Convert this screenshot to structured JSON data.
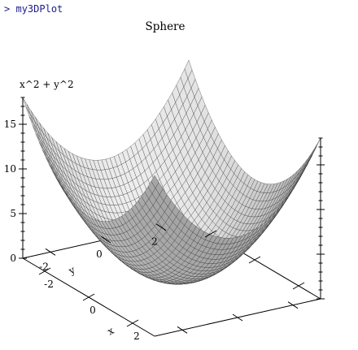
{
  "console": {
    "prompt_symbol": ">",
    "command": "my3DPlot"
  },
  "chart_data": {
    "type": "surface",
    "title": "Sphere",
    "function": "x^2 + y^2",
    "xlabel": "x",
    "ylabel": "y",
    "zlabel": "x^2 + y^2",
    "x_range": [
      -3,
      3
    ],
    "y_range": [
      -3,
      3
    ],
    "z_range": [
      0,
      18
    ],
    "x_ticks": [
      {
        "value": -2,
        "label": "-2"
      },
      {
        "value": 0,
        "label": "0"
      },
      {
        "value": 2,
        "label": "2"
      }
    ],
    "y_ticks": [
      {
        "value": -2,
        "label": "-2"
      },
      {
        "value": 0,
        "label": "0"
      },
      {
        "value": 2,
        "label": "2"
      }
    ],
    "z_ticks": [
      {
        "value": 0,
        "label": "0"
      },
      {
        "value": 5,
        "label": "5"
      },
      {
        "value": 10,
        "label": "10"
      },
      {
        "value": 15,
        "label": "15"
      }
    ],
    "grid_samples": 40,
    "colors": {
      "surface_light": "#f4f4f4",
      "surface_dark": "#8a8a8a",
      "mesh": "#222222",
      "axis": "#000000"
    }
  }
}
